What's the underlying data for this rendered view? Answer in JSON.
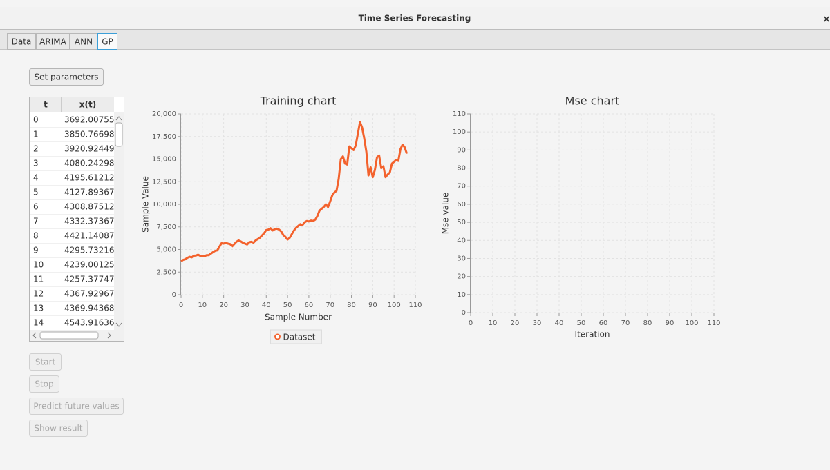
{
  "window": {
    "title": "Time Series Forecasting",
    "close": "×"
  },
  "tabs": [
    "Data",
    "ARIMA",
    "ANN",
    "GP"
  ],
  "active_tab": 3,
  "buttons": {
    "set_parameters": "Set parameters",
    "start": "Start",
    "stop": "Stop",
    "predict": "Predict future values",
    "show_result": "Show result"
  },
  "table": {
    "headers": [
      "t",
      "x(t)"
    ],
    "rows": [
      [
        0,
        "3692.00755..."
      ],
      [
        1,
        "3850.76698..."
      ],
      [
        2,
        "3920.92449..."
      ],
      [
        3,
        "4080.24298..."
      ],
      [
        4,
        "4195.61212..."
      ],
      [
        5,
        "4127.89367..."
      ],
      [
        6,
        "4308.87512..."
      ],
      [
        7,
        "4332.37367..."
      ],
      [
        8,
        "4421.14087..."
      ],
      [
        9,
        "4295.732167"
      ],
      [
        10,
        "4239.00125..."
      ],
      [
        11,
        "4257.37747..."
      ],
      [
        12,
        "4367.92967..."
      ],
      [
        13,
        "4369.943686"
      ],
      [
        14,
        "4543.91636..."
      ]
    ]
  },
  "chart_data": [
    {
      "type": "line",
      "title": "Training chart",
      "x_label": "Sample Number",
      "y_label": "Sample Value",
      "xlim": [
        0,
        110
      ],
      "xticks": [
        0,
        10,
        20,
        30,
        40,
        50,
        60,
        70,
        80,
        90,
        100,
        110
      ],
      "ylim": [
        0,
        20000
      ],
      "yticks": [
        0,
        {
          "value": 2500,
          "label": "2,500"
        },
        {
          "value": 5000,
          "label": "5,000"
        },
        {
          "value": 7500,
          "label": "7,500"
        },
        {
          "value": 10000,
          "label": "10,000"
        },
        {
          "value": 12500,
          "label": "12,500"
        },
        {
          "value": 15000,
          "label": "15,000"
        },
        {
          "value": 17500,
          "label": "17,500"
        },
        {
          "value": 20000,
          "label": "20,000"
        }
      ],
      "grid": true,
      "legend": "bottom",
      "x": [
        0,
        1,
        2,
        3,
        4,
        5,
        6,
        7,
        8,
        9,
        10,
        11,
        12,
        13,
        14,
        15,
        16,
        17,
        18,
        19,
        20,
        21,
        22,
        23,
        24,
        25,
        26,
        27,
        28,
        29,
        30,
        31,
        32,
        33,
        34,
        35,
        36,
        37,
        38,
        39,
        40,
        41,
        42,
        43,
        44,
        45,
        46,
        47,
        48,
        49,
        50,
        51,
        52,
        53,
        54,
        55,
        56,
        57,
        58,
        59,
        60,
        61,
        62,
        63,
        64,
        65,
        66,
        67,
        68,
        69,
        70,
        71,
        72,
        73,
        74,
        75,
        76,
        77,
        78,
        79,
        80,
        81,
        82,
        83,
        84,
        85,
        86,
        87,
        88,
        89,
        90,
        91,
        92,
        93,
        94,
        95,
        96,
        97,
        98,
        99,
        100,
        101,
        102,
        103,
        104,
        105,
        106
      ],
      "series": [
        {
          "name": "Dataset",
          "color": "#f3622d",
          "values": [
            3692.00755,
            3850.76698,
            3920.92449,
            4080.24298,
            4195.61212,
            4127.89367,
            4308.87512,
            4332.37367,
            4421.14087,
            4295.732167,
            4239.00125,
            4257.37747,
            4367.92967,
            4369.943686,
            4543.91636,
            4700,
            4850,
            4900,
            5300,
            5700,
            5650,
            5750,
            5650,
            5600,
            5350,
            5600,
            5850,
            6000,
            5900,
            5750,
            5650,
            5550,
            5800,
            5850,
            5750,
            6000,
            6150,
            6300,
            6550,
            6800,
            7150,
            7200,
            7350,
            7100,
            7250,
            7300,
            7200,
            7000,
            6600,
            6400,
            6100,
            6300,
            6700,
            7100,
            7400,
            7600,
            7800,
            7700,
            8000,
            8150,
            8100,
            8200,
            8150,
            8300,
            8700,
            9300,
            9500,
            9700,
            10000,
            9700,
            10300,
            11000,
            11300,
            11500,
            12800,
            15000,
            15300,
            14500,
            14400,
            16400,
            16200,
            16000,
            16500,
            17800,
            19100,
            18500,
            17300,
            15800,
            13200,
            14100,
            13000,
            13800,
            15200,
            15400,
            14000,
            14200,
            13000,
            13300,
            13500,
            14500,
            14700,
            14900,
            14800,
            16100,
            16600,
            16300,
            15600
          ]
        }
      ]
    },
    {
      "type": "line",
      "title": "Mse chart",
      "x_label": "Iteration",
      "y_label": "Mse value",
      "xlim": [
        0,
        110
      ],
      "xticks": [
        0,
        10,
        20,
        30,
        40,
        50,
        60,
        70,
        80,
        90,
        100,
        110
      ],
      "ylim": [
        0,
        110
      ],
      "yticks": [
        0,
        10,
        20,
        30,
        40,
        50,
        60,
        70,
        80,
        90,
        100,
        110
      ],
      "grid": true
    }
  ]
}
